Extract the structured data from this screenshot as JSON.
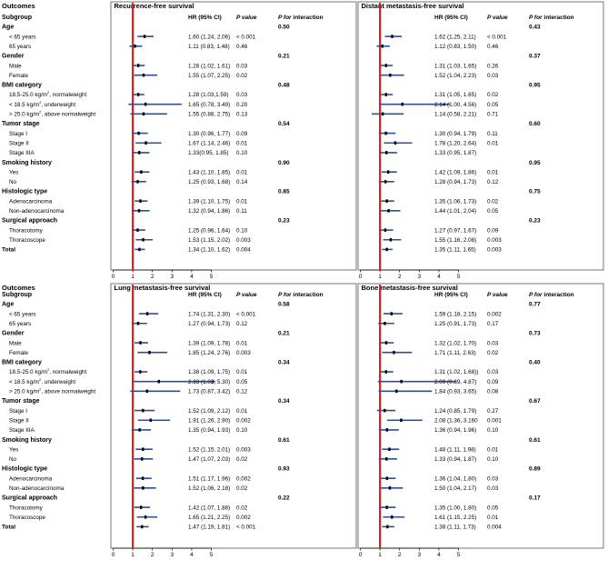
{
  "figure": {
    "outcomes_label": "Outcomes",
    "subgroup_label": "Subgroup",
    "col_hr": "HR (95% CI)",
    "col_p": "P value",
    "col_int_p": "P for",
    "col_int_rest": " interaction",
    "superscript_2": "2"
  },
  "colors": {
    "box": "#000000",
    "ref_line": "#e02020",
    "ci": "#2f4f8f"
  },
  "chart_data": [
    {
      "type": "forest",
      "title": "Recurrence-free survival",
      "xlim": [
        0,
        5
      ],
      "xticks": [
        "0",
        "1",
        "2",
        "3",
        "4",
        "5"
      ],
      "ref_line": 1,
      "rows": [
        {
          "kind": "group",
          "label": "Age",
          "int_p": "0.50"
        },
        {
          "kind": "item",
          "label": "< 65 years",
          "hr": 1.6,
          "lo": 1.24,
          "hi": 2.06,
          "hr_text": "1.60 (1.24, 2.06)",
          "p": "< 0.001"
        },
        {
          "kind": "item",
          "label": "65 years",
          "hr": 1.11,
          "lo": 0.83,
          "hi": 1.48,
          "hr_text": "1.11 (0.83, 1.48)",
          "p": "0.46"
        },
        {
          "kind": "group",
          "label": "Gender",
          "int_p": "0.21"
        },
        {
          "kind": "item",
          "label": "Male",
          "hr": 1.28,
          "lo": 1.02,
          "hi": 1.61,
          "hr_text": "1.28 (1.02, 1.61)",
          "p": "0.03"
        },
        {
          "kind": "item",
          "label": "Female",
          "hr": 1.55,
          "lo": 1.07,
          "hi": 2.25,
          "hr_text": "1.55 (1.07, 2.25)",
          "p": "0.02"
        },
        {
          "kind": "group",
          "label": "BMI category",
          "int_p": "0.48"
        },
        {
          "kind": "item",
          "label": "18.5-25.0 kg/m",
          "sup": true,
          "suffix": ", normalweight",
          "hr": 1.28,
          "lo": 1.03,
          "hi": 1.59,
          "hr_text": "1.28 (1.03,1.59)",
          "p": "0.03"
        },
        {
          "kind": "item",
          "label": "< 18.5 kg/m",
          "sup": true,
          "suffix": ", underweight",
          "hr": 1.65,
          "lo": 0.78,
          "hi": 3.49,
          "hr_text": "1.65 (0.78, 3.49)",
          "p": "0.20"
        },
        {
          "kind": "item",
          "label": "> 25.0 kg/m",
          "sup": true,
          "suffix": ", above normalweight",
          "hr": 1.55,
          "lo": 0.88,
          "hi": 2.75,
          "hr_text": "1.55 (0.88, 2.75)",
          "p": "0.13"
        },
        {
          "kind": "group",
          "label": "Tumor stage",
          "int_p": "0.54"
        },
        {
          "kind": "item",
          "label": "Stage I",
          "hr": 1.3,
          "lo": 0.96,
          "hi": 1.77,
          "hr_text": "1.30 (0.96, 1.77)",
          "p": "0.09"
        },
        {
          "kind": "item",
          "label": "Stage II",
          "hr": 1.67,
          "lo": 1.14,
          "hi": 2.46,
          "hr_text": "1.67 (1.14, 2.46)",
          "p": "0.01"
        },
        {
          "kind": "item",
          "label": "Stage IIIA",
          "hr": 1.33,
          "lo": 0.95,
          "hi": 1.85,
          "hr_text": "1.33(0.95, 1.85)",
          "p": "0.10"
        },
        {
          "kind": "group",
          "label": "Smoking history",
          "int_p": "0.90"
        },
        {
          "kind": "item",
          "label": "Yes",
          "hr": 1.43,
          "lo": 1.1,
          "hi": 1.85,
          "hr_text": "1.43 (1.10, 1.85)",
          "p": "0.01"
        },
        {
          "kind": "item",
          "label": "No",
          "hr": 1.25,
          "lo": 0.93,
          "hi": 1.68,
          "hr_text": "1.25 (0.93, 1.68)",
          "p": "0.14"
        },
        {
          "kind": "group",
          "label": "Histologic type",
          "int_p": "0.85"
        },
        {
          "kind": "item",
          "label": "Adenocarcinoma",
          "hr": 1.39,
          "lo": 1.1,
          "hi": 1.75,
          "hr_text": "1.39 (1.10, 1.75)",
          "p": "0.01"
        },
        {
          "kind": "item",
          "label": "Non-adenocarcinoma",
          "hr": 1.32,
          "lo": 0.94,
          "hi": 1.86,
          "hr_text": "1.32 (0.94, 1.86)",
          "p": "0.11"
        },
        {
          "kind": "group",
          "label": "Surgical approach",
          "int_p": "0.23"
        },
        {
          "kind": "item",
          "label": "Thoracotomy",
          "hr": 1.25,
          "lo": 0.96,
          "hi": 1.64,
          "hr_text": "1.25 (0.96, 1.64)",
          "p": "0.10"
        },
        {
          "kind": "item",
          "label": "Thoracoscope",
          "hr": 1.53,
          "lo": 1.15,
          "hi": 2.02,
          "hr_text": "1.53 (1.15, 2.02)",
          "p": "0.003"
        },
        {
          "kind": "total",
          "label": "Total",
          "hr": 1.34,
          "lo": 1.1,
          "hi": 1.62,
          "hr_text": "1.34 (1.10, 1.62)",
          "p": "0.004"
        }
      ]
    },
    {
      "type": "forest",
      "title": "Distant metastasis-free survival",
      "xlim": [
        0,
        5
      ],
      "xticks": [
        "0",
        "1",
        "2",
        "3",
        "4",
        "5"
      ],
      "ref_line": 1,
      "rows": [
        {
          "kind": "group",
          "label": "Age",
          "int_p": "0.43"
        },
        {
          "kind": "item",
          "label": "< 65 years",
          "hr": 1.62,
          "lo": 1.25,
          "hi": 2.11,
          "hr_text": "1.62 (1.25, 2.11)",
          "p": "< 0.001"
        },
        {
          "kind": "item",
          "label": "65 years",
          "hr": 1.12,
          "lo": 0.83,
          "hi": 1.5,
          "hr_text": "1.12 (0.83, 1.50)",
          "p": "0.46"
        },
        {
          "kind": "group",
          "label": "Gender",
          "int_p": "0.37"
        },
        {
          "kind": "item",
          "label": "Male",
          "hr": 1.31,
          "lo": 1.03,
          "hi": 1.65,
          "hr_text": "1.31 (1.03, 1.65)",
          "p": "0.26"
        },
        {
          "kind": "item",
          "label": "Female",
          "hr": 1.52,
          "lo": 1.04,
          "hi": 2.23,
          "hr_text": "1.52 (1.04, 2.23)",
          "p": "0.03"
        },
        {
          "kind": "group",
          "label": "BMI category",
          "int_p": "0.95"
        },
        {
          "kind": "item",
          "label": "18.5-25.0 kg/m",
          "sup": true,
          "suffix": ", normalweight",
          "hr": 1.31,
          "lo": 1.05,
          "hi": 1.65,
          "hr_text": "1.31 (1.05, 1.65)",
          "p": "0.02"
        },
        {
          "kind": "item",
          "label": "< 18.5 kg/m",
          "sup": true,
          "suffix": ", underweight",
          "hr": 2.14,
          "lo": 1.0,
          "hi": 4.56,
          "hr_text": "2.14 (1.00, 4.56)",
          "p": "0.05"
        },
        {
          "kind": "item",
          "label": "> 25.0 kg/m",
          "sup": true,
          "suffix": ", above normalweight",
          "hr": 1.14,
          "lo": 0.58,
          "hi": 2.21,
          "hr_text": "1.14 (0.58, 2.21)",
          "p": "0.71"
        },
        {
          "kind": "group",
          "label": "Tumor stage",
          "int_p": "0.60"
        },
        {
          "kind": "item",
          "label": "Stage I",
          "hr": 1.3,
          "lo": 0.94,
          "hi": 1.79,
          "hr_text": "1.30 (0.94, 1.79)",
          "p": "0.11"
        },
        {
          "kind": "item",
          "label": "Stage II",
          "hr": 1.78,
          "lo": 1.2,
          "hi": 2.64,
          "hr_text": "1.78 (1.20, 2.64)",
          "p": "0.01"
        },
        {
          "kind": "item",
          "label": "Stage IIIA",
          "hr": 1.33,
          "lo": 0.95,
          "hi": 1.87,
          "hr_text": "1.33 (0.95, 1.87)",
          "p": ""
        },
        {
          "kind": "group",
          "label": "Smoking history",
          "int_p": "0.95"
        },
        {
          "kind": "item",
          "label": "Yes",
          "hr": 1.42,
          "lo": 1.09,
          "hi": 1.86,
          "hr_text": "1.42 (1.09, 1.86)",
          "p": "0.01"
        },
        {
          "kind": "item",
          "label": "No",
          "hr": 1.28,
          "lo": 0.94,
          "hi": 1.73,
          "hr_text": "1.28 (0.94, 1.73)",
          "p": "0.12"
        },
        {
          "kind": "group",
          "label": "Histologic type",
          "int_p": "0.75"
        },
        {
          "kind": "item",
          "label": "Adenocarcinoma",
          "hr": 1.35,
          "lo": 1.06,
          "hi": 1.73,
          "hr_text": "1.35 (1.06, 1.73)",
          "p": "0.02"
        },
        {
          "kind": "item",
          "label": "Non-adenocarcinoma",
          "hr": 1.44,
          "lo": 1.01,
          "hi": 2.04,
          "hr_text": "1.44 (1.01, 2.04)",
          "p": "0.05"
        },
        {
          "kind": "group",
          "label": "Surgical approach",
          "int_p": "0.23"
        },
        {
          "kind": "item",
          "label": "Thoracotomy",
          "hr": 1.27,
          "lo": 0.97,
          "hi": 1.67,
          "hr_text": "1.27 (0.97, 1.67)",
          "p": "0.09"
        },
        {
          "kind": "item",
          "label": "Thoracoscope",
          "hr": 1.55,
          "lo": 1.16,
          "hi": 2.08,
          "hr_text": "1.55 (1.16, 2.08)",
          "p": "0.003"
        },
        {
          "kind": "total",
          "label": "Total",
          "hr": 1.35,
          "lo": 1.11,
          "hi": 1.65,
          "hr_text": "1.35 (1.11, 1.65)",
          "p": "0.003"
        }
      ]
    },
    {
      "type": "forest",
      "title": "Lung metastasis-free survival",
      "xlim": [
        0,
        5
      ],
      "xticks": [
        "0",
        "1",
        "2",
        "3",
        "4",
        "5"
      ],
      "ref_line": 1,
      "rows": [
        {
          "kind": "group",
          "label": "Age",
          "int_p": "0.58"
        },
        {
          "kind": "item",
          "label": "< 65 years",
          "hr": 1.74,
          "lo": 1.31,
          "hi": 2.3,
          "hr_text": "1.74 (1.31, 2.30)",
          "p": "< 0.001"
        },
        {
          "kind": "item",
          "label": "65 years",
          "hr": 1.27,
          "lo": 0.94,
          "hi": 1.73,
          "hr_text": "1.27 (0.94, 1.73)",
          "p": "0.12"
        },
        {
          "kind": "group",
          "label": "Gender",
          "int_p": "0.21"
        },
        {
          "kind": "item",
          "label": "Male",
          "hr": 1.39,
          "lo": 1.09,
          "hi": 1.78,
          "hr_text": "1.39 (1.09, 1.78)",
          "p": "0.01"
        },
        {
          "kind": "item",
          "label": "Female",
          "hr": 1.85,
          "lo": 1.24,
          "hi": 2.76,
          "hr_text": "1.85 (1.24, 2.76)",
          "p": "0.003"
        },
        {
          "kind": "group",
          "label": "BMI category",
          "int_p": "0.34"
        },
        {
          "kind": "item",
          "label": "18.5-25.0 kg/m",
          "sup": true,
          "suffix": ", normalweight",
          "hr": 1.38,
          "lo": 1.09,
          "hi": 1.75,
          "hr_text": "1.38 (1.09, 1.75)",
          "p": "0.01"
        },
        {
          "kind": "item",
          "label": "< 18.5 kg/m",
          "sup": true,
          "suffix": ", underweight",
          "hr": 2.33,
          "lo": 1.02,
          "hi": 5.3,
          "hr_text": "2.33 (1.02, 5.30)",
          "p": "0.05",
          "arrow": true
        },
        {
          "kind": "item",
          "label": "> 25.0 kg/m",
          "sup": true,
          "suffix": ", above normalweight",
          "hr": 1.73,
          "lo": 0.87,
          "hi": 3.42,
          "hr_text": "1.73 (0.87, 3.42)",
          "p": "0.12"
        },
        {
          "kind": "group",
          "label": "Tumor stage",
          "int_p": "0.34"
        },
        {
          "kind": "item",
          "label": "Stage I",
          "hr": 1.52,
          "lo": 1.09,
          "hi": 2.12,
          "hr_text": "1.52 (1.09, 2.12)",
          "p": "0.01"
        },
        {
          "kind": "item",
          "label": "Stage II",
          "hr": 1.91,
          "lo": 1.26,
          "hi": 2.9,
          "hr_text": "1.91 (1.26, 2.90)",
          "p": "0.002"
        },
        {
          "kind": "item",
          "label": "Stage IIIA",
          "hr": 1.35,
          "lo": 0.94,
          "hi": 1.93,
          "hr_text": "1.35 (0.94, 1.93)",
          "p": "0.10"
        },
        {
          "kind": "group",
          "label": "Smoking history",
          "int_p": "0.61"
        },
        {
          "kind": "item",
          "label": "Yes",
          "hr": 1.52,
          "lo": 1.15,
          "hi": 2.01,
          "hr_text": "1.52 (1.15, 2.01)",
          "p": "0.003"
        },
        {
          "kind": "item",
          "label": "No",
          "hr": 1.47,
          "lo": 1.07,
          "hi": 2.03,
          "hr_text": "1.47 (1.07, 2.03)",
          "p": "0.02"
        },
        {
          "kind": "group",
          "label": "Histologic type",
          "int_p": "0.93"
        },
        {
          "kind": "item",
          "label": "Adenocarcinoma",
          "hr": 1.51,
          "lo": 1.17,
          "hi": 1.96,
          "hr_text": "1.51 (1.17, 1.96)",
          "p": "0.002"
        },
        {
          "kind": "item",
          "label": "Non-adenocarcinoma",
          "hr": 1.52,
          "lo": 1.06,
          "hi": 2.18,
          "hr_text": "1.52 (1.06, 2.18)",
          "p": "0.02"
        },
        {
          "kind": "group",
          "label": "Surgical approach",
          "int_p": "0.22"
        },
        {
          "kind": "item",
          "label": "Thoracotomy",
          "hr": 1.42,
          "lo": 1.07,
          "hi": 1.88,
          "hr_text": "1.42 (1.07, 1.88)",
          "p": "0.02"
        },
        {
          "kind": "item",
          "label": "Thoracoscope",
          "hr": 1.65,
          "lo": 1.21,
          "hi": 2.25,
          "hr_text": "1.65 (1.21, 2.25)",
          "p": "0.002"
        },
        {
          "kind": "total",
          "label": "Total",
          "hr": 1.47,
          "lo": 1.19,
          "hi": 1.81,
          "hr_text": "1.47 (1.19, 1.81)",
          "p": "< 0.001"
        }
      ]
    },
    {
      "type": "forest",
      "title": "Bone metastasis-free survival",
      "xlim": [
        0,
        5
      ],
      "xticks": [
        "0",
        "1",
        "2",
        "3",
        "4",
        "5"
      ],
      "ref_line": 1,
      "rows": [
        {
          "kind": "group",
          "label": "Age",
          "int_p": "0.77"
        },
        {
          "kind": "item",
          "label": "< 65 years",
          "hr": 1.59,
          "lo": 1.18,
          "hi": 2.15,
          "hr_text": "1.59 (1.18, 2.15)",
          "p": "0.002"
        },
        {
          "kind": "item",
          "label": "65 years",
          "hr": 1.25,
          "lo": 0.91,
          "hi": 1.73,
          "hr_text": "1.25 (0.91, 1.73)",
          "p": "0.17"
        },
        {
          "kind": "group",
          "label": "Gender",
          "int_p": "0.73"
        },
        {
          "kind": "item",
          "label": "Male",
          "hr": 1.32,
          "lo": 1.02,
          "hi": 1.7,
          "hr_text": "1.32 (1.02, 1.70)",
          "p": "0.03"
        },
        {
          "kind": "item",
          "label": "Female",
          "hr": 1.71,
          "lo": 1.11,
          "hi": 2.63,
          "hr_text": "1.71 (1.11, 2.63)",
          "p": "0.02"
        },
        {
          "kind": "group",
          "label": "BMI category",
          "int_p": "0.40"
        },
        {
          "kind": "item",
          "label": "18.5-25.0 kg/m",
          "sup": true,
          "suffix": ", normalweight",
          "hr": 1.31,
          "lo": 1.02,
          "hi": 1.68,
          "hr_text": "1.31 (1.02, 1.68))",
          "p": "0.03"
        },
        {
          "kind": "item",
          "label": "< 18.5 kg/m",
          "sup": true,
          "suffix": ", underweight",
          "hr": 2.09,
          "lo": 0.89,
          "hi": 4.87,
          "hr_text": "2.09 (0.89, 4.87)",
          "p": "0.09"
        },
        {
          "kind": "item",
          "label": "> 25.0 kg/m",
          "sup": true,
          "suffix": ", above normalweight",
          "hr": 1.84,
          "lo": 0.93,
          "hi": 3.65,
          "hr_text": "1.84 (0.93, 3.65)",
          "p": "0.08"
        },
        {
          "kind": "group",
          "label": "Tumor stage",
          "int_p": "0.67"
        },
        {
          "kind": "item",
          "label": "Stage I",
          "hr": 1.24,
          "lo": 0.85,
          "hi": 1.79,
          "hr_text": "1.24 (0.85, 1.79)",
          "p": "0.27"
        },
        {
          "kind": "item",
          "label": "Stage II",
          "hr": 2.08,
          "lo": 1.36,
          "hi": 3.16,
          "hr_text": "2.08 (1.36, 3.160",
          "p": "0.001"
        },
        {
          "kind": "item",
          "label": "Stage IIIA",
          "hr": 1.36,
          "lo": 0.94,
          "hi": 1.96,
          "hr_text": "1.36 (0.94, 1.96)",
          "p": "0.10"
        },
        {
          "kind": "group",
          "label": "Smoking history",
          "int_p": "0.61"
        },
        {
          "kind": "item",
          "label": "Yes",
          "hr": 1.48,
          "lo": 1.11,
          "hi": 1.98,
          "hr_text": "1.48 (1.11, 1.98)",
          "p": "0.01"
        },
        {
          "kind": "item",
          "label": "No",
          "hr": 1.33,
          "lo": 0.94,
          "hi": 1.87,
          "hr_text": "1.33 (0.94, 1.87)",
          "p": "0.10"
        },
        {
          "kind": "group",
          "label": "Histologic type",
          "int_p": "0.89"
        },
        {
          "kind": "item",
          "label": "Adenocarcinoma",
          "hr": 1.36,
          "lo": 1.04,
          "hi": 1.8,
          "hr_text": "1.36 (1.04, 1.80)",
          "p": "0.03"
        },
        {
          "kind": "item",
          "label": "Non-adenocarcinoma",
          "hr": 1.5,
          "lo": 1.04,
          "hi": 2.17,
          "hr_text": "1.50 (1.04, 2.17)",
          "p": "0.03"
        },
        {
          "kind": "group",
          "label": "Surgical approach",
          "int_p": "0.17"
        },
        {
          "kind": "item",
          "label": "Thoracotomy",
          "hr": 1.35,
          "lo": 1.0,
          "hi": 1.8,
          "hr_text": "1.35 (1.00, 1.80)",
          "p": "0.05"
        },
        {
          "kind": "item",
          "label": "Thoracoscope",
          "hr": 1.61,
          "lo": 1.15,
          "hi": 2.25,
          "hr_text": "1.61 (1.15, 2.25)",
          "p": "0.01"
        },
        {
          "kind": "total",
          "label": "Total",
          "hr": 1.38,
          "lo": 1.11,
          "hi": 1.73,
          "hr_text": "1.38 (1.11, 1.73)",
          "p": "0.004"
        }
      ]
    }
  ]
}
